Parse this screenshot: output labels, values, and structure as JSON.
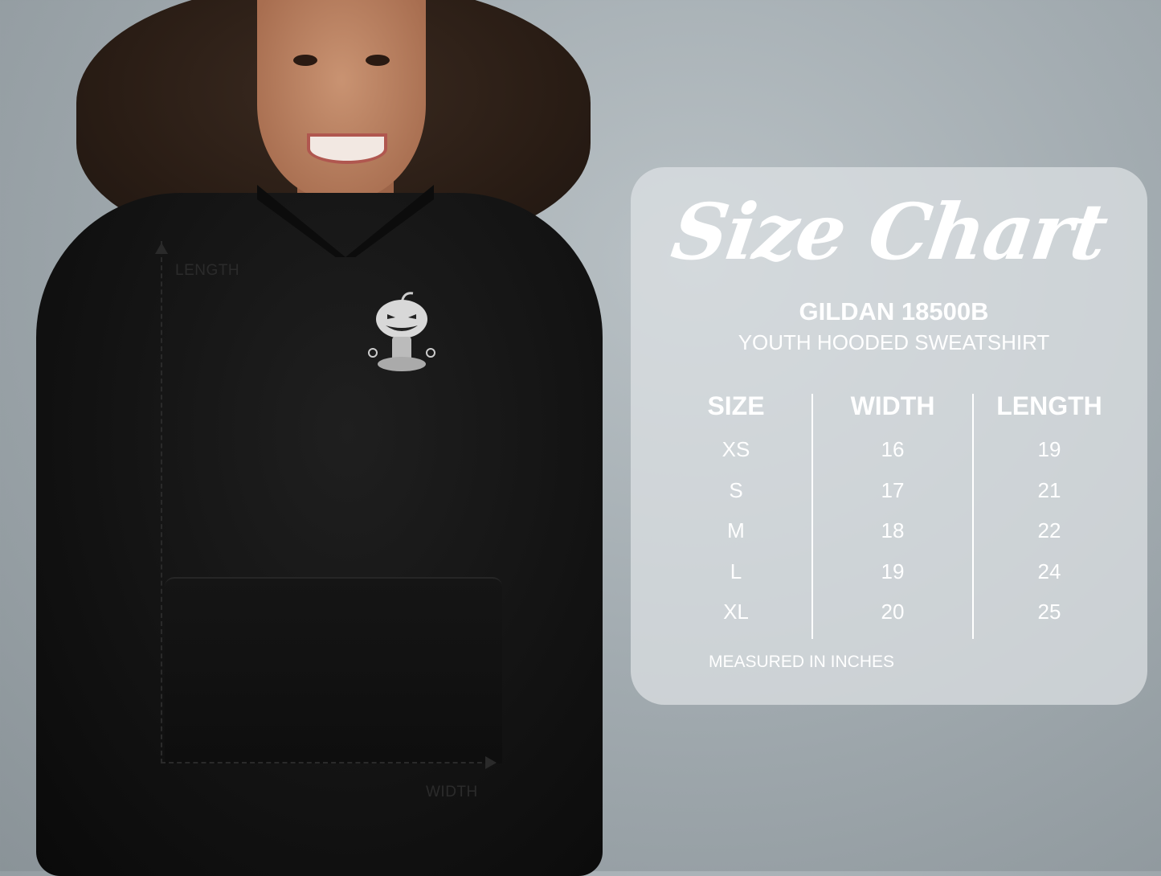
{
  "photo": {
    "length_label": "LENGTH",
    "width_label": "WIDTH"
  },
  "size_chart": {
    "title": "Size Chart",
    "brand": "GILDAN 18500B",
    "product": "YOUTH HOODED SWEATSHIRT",
    "columns": [
      "SIZE",
      "WIDTH",
      "LENGTH"
    ],
    "rows": [
      [
        "XS",
        "16",
        "19"
      ],
      [
        "S",
        "17",
        "21"
      ],
      [
        "M",
        "18",
        "22"
      ],
      [
        "L",
        "19",
        "24"
      ],
      [
        "XL",
        "20",
        "25"
      ]
    ],
    "note": "MEASURED IN INCHES"
  },
  "colors": {
    "panel": "#dee2e4",
    "text": "#ffffff",
    "hoodie": "#121212"
  }
}
